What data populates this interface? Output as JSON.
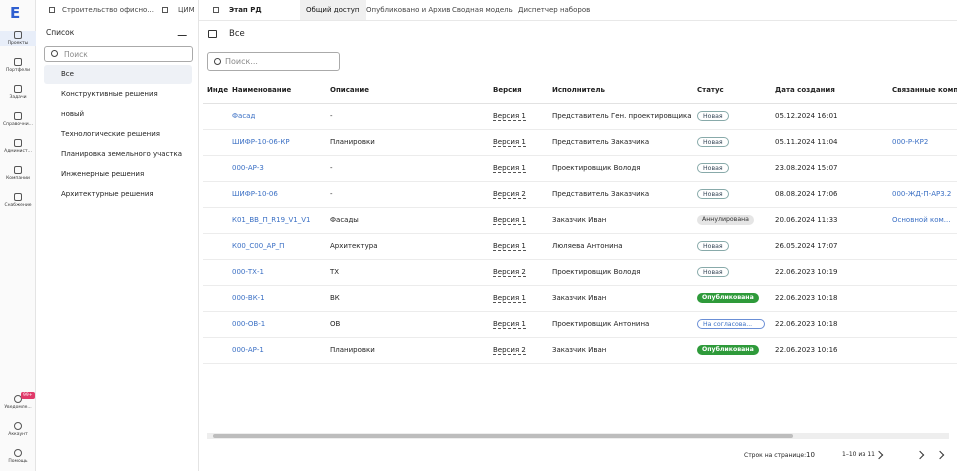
{
  "logo": "E",
  "nav": {
    "top": [
      "Проекты",
      "Портфели",
      "Задачи",
      "Справочни...",
      "Админист...",
      "Компании",
      "Снабжение"
    ],
    "bottom": [
      "Уведомле...",
      "Аккаунт",
      "Помощь"
    ],
    "badge": "99+"
  },
  "breadcrumbs": [
    "Строительство офисно...",
    "ЦИМ",
    "Этап РД"
  ],
  "tabs": [
    "Общий доступ",
    "Опубликовано и Архив",
    "Сводная модель",
    "Диспетчер наборов"
  ],
  "list_panel": {
    "title": "Список",
    "search_placeholder": "Поиск",
    "items": [
      "Все",
      "Конструктивные решения",
      "новый",
      "Технологические решения",
      "Планировка земельного участка",
      "Инженерные решения",
      "Архитектурные решения"
    ]
  },
  "main": {
    "heading": "Все",
    "search_placeholder": "Поиск..."
  },
  "table": {
    "headers": [
      "Инде",
      "Наименование",
      "Описание",
      "Версия",
      "Исполнитель",
      "Статус",
      "Дата создания",
      "Связанные компо"
    ],
    "rows": [
      {
        "name": "Фасад",
        "description": "-",
        "version": "Версия 1",
        "executor": "Представитель Ген. проектировщика",
        "status": {
          "text": "Новая",
          "tone": "outline"
        },
        "created": "05.12.2024 16:01"
      },
      {
        "name": "ШИФР-10-06-КР",
        "description": "Планировки",
        "version": "Версия 1",
        "executor": "Представитель Заказчика",
        "status": {
          "text": "Новая",
          "tone": "outline"
        },
        "created": "05.11.2024 11:04",
        "linked": "000-Р-КР2"
      },
      {
        "name": "000-АР-3",
        "description": "-",
        "version": "Версия 1",
        "executor": "Проектировщик Володя",
        "status": {
          "text": "Новая",
          "tone": "outline"
        },
        "created": "23.08.2024 15:07"
      },
      {
        "name": "ШИФР-10-06",
        "description": "-",
        "version": "Версия 2",
        "executor": "Представитель Заказчика",
        "status": {
          "text": "Новая",
          "tone": "outline"
        },
        "created": "08.08.2024 17:06",
        "linked": "000-ЖД-П-АР3.2"
      },
      {
        "name": "К01_ВВ_П_R19_V1_V1",
        "description": "Фасады",
        "version": "Версия 1",
        "executor": "Заказчик Иван",
        "status": {
          "text": "Аннулирована",
          "tone": "grey"
        },
        "created": "20.06.2024 11:33",
        "linked": "Основной ком..."
      },
      {
        "name": "К00_С00_АР_П",
        "description": "Архитектура",
        "version": "Версия 1",
        "executor": "Люляева Антонина",
        "status": {
          "text": "Новая",
          "tone": "outline"
        },
        "created": "26.05.2024 17:07"
      },
      {
        "name": "000-ТХ-1",
        "description": "ТХ",
        "version": "Версия 2",
        "executor": "Проектировщик Володя",
        "status": {
          "text": "Новая",
          "tone": "outline"
        },
        "created": "22.06.2023 10:19"
      },
      {
        "name": "000-ВК-1",
        "description": "ВК",
        "version": "Версия 1",
        "executor": "Заказчик Иван",
        "status": {
          "text": "Опубликована",
          "tone": "green"
        },
        "created": "22.06.2023 10:18"
      },
      {
        "name": "000-ОВ-1",
        "description": "ОВ",
        "version": "Версия 1",
        "executor": "Проектировщик Антонина",
        "status": {
          "text": "На согласова...",
          "tone": "blue"
        },
        "created": "22.06.2023 10:18"
      },
      {
        "name": "000-АР-1",
        "description": "Планировки",
        "version": "Версия 2",
        "executor": "Заказчик Иван",
        "status": {
          "text": "Опубликована",
          "tone": "green"
        },
        "created": "22.06.2023 10:16"
      }
    ]
  },
  "footer": {
    "rows_per_page_label": "Строк на странице:",
    "rows_per_page": "10",
    "range": "1–10 из 11"
  }
}
